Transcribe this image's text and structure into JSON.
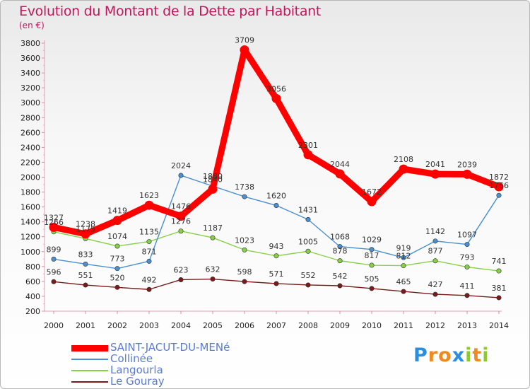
{
  "chart_data": {
    "type": "line",
    "title": "Evolution du Montant de la Dette par Habitant",
    "subtitle": "(en €)",
    "categories": [
      "2000",
      "2001",
      "2002",
      "2003",
      "2004",
      "2005",
      "2006",
      "2007",
      "2008",
      "2009",
      "2010",
      "2011",
      "2012",
      "2013",
      "2014"
    ],
    "ylim": [
      200,
      3800
    ],
    "yticks": [
      200,
      400,
      600,
      800,
      1000,
      1200,
      1400,
      1600,
      1800,
      2000,
      2200,
      2400,
      2600,
      2800,
      3000,
      3200,
      3400,
      3600,
      3800
    ],
    "grid": false,
    "legend_position": "bottom-left",
    "series": [
      {
        "name": "SAINT-JACUT-DU-MENé",
        "color": "#ff0000",
        "values": [
          1327,
          1238,
          1419,
          1623,
          1476,
          1840,
          3709,
          3056,
          2301,
          2044,
          1672,
          2108,
          2041,
          2039,
          1872
        ]
      },
      {
        "name": "Collinée",
        "color": "#4a8fd0",
        "values": [
          899,
          833,
          773,
          871,
          2024,
          1880,
          1738,
          1620,
          1431,
          1068,
          1029,
          919,
          1142,
          1097,
          1756
        ]
      },
      {
        "name": "Langourla",
        "color": "#88d048",
        "values": [
          1266,
          1175,
          1074,
          1135,
          1276,
          1187,
          1023,
          943,
          1005,
          878,
          817,
          812,
          877,
          793,
          741
        ]
      },
      {
        "name": "Le Gouray",
        "color": "#7a1a1a",
        "values": [
          596,
          551,
          520,
          492,
          623,
          632,
          598,
          571,
          552,
          542,
          505,
          465,
          427,
          411,
          381
        ]
      }
    ]
  },
  "logo": {
    "letters": [
      {
        "ch": "P",
        "color": "#2d8ee0"
      },
      {
        "ch": "r",
        "color": "#f08a1c"
      },
      {
        "ch": "o",
        "color": "#f08a1c"
      },
      {
        "ch": "x",
        "color": "#2d8ee0"
      },
      {
        "ch": "i",
        "color": "#8ccc2a"
      },
      {
        "ch": "t",
        "color": "#f08a1c"
      },
      {
        "ch": "i",
        "color": "#8ccc2a"
      }
    ]
  }
}
